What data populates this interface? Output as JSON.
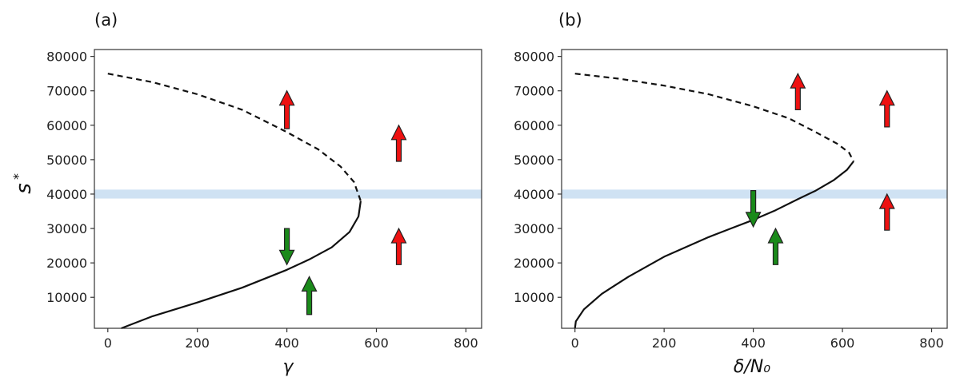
{
  "chart_data": [
    {
      "type": "line",
      "panel_label": "(a)",
      "xlabel": "γ",
      "ylabel": "s*",
      "xlim": [
        -30,
        835
      ],
      "ylim": [
        1000,
        82000
      ],
      "xticks": [
        0,
        200,
        400,
        600,
        800
      ],
      "yticks": [
        10000,
        20000,
        30000,
        40000,
        50000,
        60000,
        70000,
        80000
      ],
      "band": {
        "y0": 38700,
        "y1": 41300,
        "color": "#cfe2f3"
      },
      "series": [
        {
          "style": "dashed",
          "color": "#111111",
          "x": [
            0,
            100,
            200,
            300,
            400,
            470,
            520,
            550,
            565
          ],
          "y": [
            75000,
            72500,
            69000,
            64500,
            58000,
            53000,
            48000,
            43500,
            38000
          ]
        },
        {
          "style": "solid",
          "color": "#111111",
          "x": [
            565,
            560,
            540,
            500,
            450,
            400,
            300,
            200,
            100,
            30
          ],
          "y": [
            38000,
            33500,
            29000,
            24500,
            21000,
            18000,
            12800,
            8500,
            4500,
            1000
          ]
        }
      ],
      "arrows": [
        {
          "x": 400,
          "y_from": 59000,
          "y_to": 70000,
          "direction": "up",
          "color": "#ee1111"
        },
        {
          "x": 650,
          "y_from": 49500,
          "y_to": 60000,
          "direction": "up",
          "color": "#ee1111"
        },
        {
          "x": 650,
          "y_from": 19500,
          "y_to": 30000,
          "direction": "up",
          "color": "#ee1111"
        },
        {
          "x": 400,
          "y_from": 30000,
          "y_to": 19500,
          "direction": "down",
          "color": "#1a8a1a"
        },
        {
          "x": 450,
          "y_from": 5000,
          "y_to": 16000,
          "direction": "up",
          "color": "#1a8a1a"
        }
      ]
    },
    {
      "type": "line",
      "panel_label": "(b)",
      "xlabel": "δ/N₀",
      "ylabel": "",
      "xlim": [
        -30,
        835
      ],
      "ylim": [
        1000,
        82000
      ],
      "xticks": [
        0,
        200,
        400,
        600,
        800
      ],
      "yticks": [
        10000,
        20000,
        30000,
        40000,
        50000,
        60000,
        70000,
        80000
      ],
      "band": {
        "y0": 38700,
        "y1": 41300,
        "color": "#cfe2f3"
      },
      "series": [
        {
          "style": "dashed",
          "color": "#111111",
          "x": [
            0,
            100,
            200,
            300,
            400,
            480,
            540,
            590,
            615,
            625
          ],
          "y": [
            75000,
            73500,
            71500,
            69000,
            65500,
            62000,
            58000,
            54500,
            52000,
            49500
          ]
        },
        {
          "style": "solid",
          "color": "#111111",
          "x": [
            625,
            610,
            580,
            540,
            500,
            450,
            400,
            350,
            300,
            200,
            120,
            60,
            20,
            2,
            0
          ],
          "y": [
            49500,
            47000,
            44000,
            41000,
            38500,
            35300,
            32500,
            30000,
            27500,
            21800,
            16000,
            11000,
            6500,
            3000,
            1000
          ]
        }
      ],
      "arrows": [
        {
          "x": 500,
          "y_from": 64500,
          "y_to": 75000,
          "direction": "up",
          "color": "#ee1111"
        },
        {
          "x": 700,
          "y_from": 59500,
          "y_to": 70000,
          "direction": "up",
          "color": "#ee1111"
        },
        {
          "x": 700,
          "y_from": 29500,
          "y_to": 40000,
          "direction": "up",
          "color": "#ee1111"
        },
        {
          "x": 400,
          "y_from": 41000,
          "y_to": 30500,
          "direction": "down",
          "color": "#1a8a1a"
        },
        {
          "x": 450,
          "y_from": 19500,
          "y_to": 30000,
          "direction": "up",
          "color": "#1a8a1a"
        }
      ]
    }
  ]
}
